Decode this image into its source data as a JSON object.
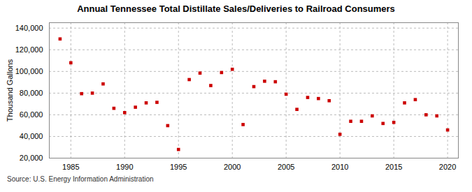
{
  "chart_data": {
    "type": "scatter",
    "title": "Annual Tennessee Total Distillate Sales/Deliveries to Railroad Consumers",
    "ylabel": "Thousand Gallons",
    "source": "Source: U.S. Energy Information Administration",
    "x": [
      1984,
      1985,
      1986,
      1987,
      1988,
      1989,
      1990,
      1991,
      1992,
      1993,
      1994,
      1995,
      1996,
      1997,
      1998,
      1999,
      2000,
      2001,
      2002,
      2003,
      2004,
      2005,
      2006,
      2007,
      2008,
      2009,
      2010,
      2011,
      2012,
      2013,
      2014,
      2015,
      2016,
      2017,
      2018,
      2019,
      2020
    ],
    "values": [
      130000,
      108000,
      79500,
      80000,
      88500,
      66000,
      62000,
      67000,
      71000,
      71500,
      50000,
      28000,
      92500,
      98500,
      87000,
      99000,
      102000,
      51000,
      86000,
      91000,
      90500,
      79000,
      65000,
      76000,
      75000,
      73000,
      42000,
      54000,
      54000,
      59000,
      52000,
      53000,
      71000,
      74000,
      60000,
      59000,
      46000
    ],
    "color": "#cc0000",
    "marker": "square",
    "xlim": [
      1983,
      2021
    ],
    "ylim": [
      20000,
      145000
    ],
    "xticks": [
      1985,
      1990,
      1995,
      2000,
      2005,
      2010,
      2015,
      2020
    ],
    "yticks": [
      {
        "value": 20000,
        "label": "20,000"
      },
      {
        "value": 40000,
        "label": "40,000"
      },
      {
        "value": 60000,
        "label": "60,000"
      },
      {
        "value": 80000,
        "label": "80,000"
      },
      {
        "value": 100000,
        "label": "100,000"
      },
      {
        "value": 120000,
        "label": "120,000"
      },
      {
        "value": 140000,
        "label": "140,000"
      }
    ],
    "grid": true
  }
}
